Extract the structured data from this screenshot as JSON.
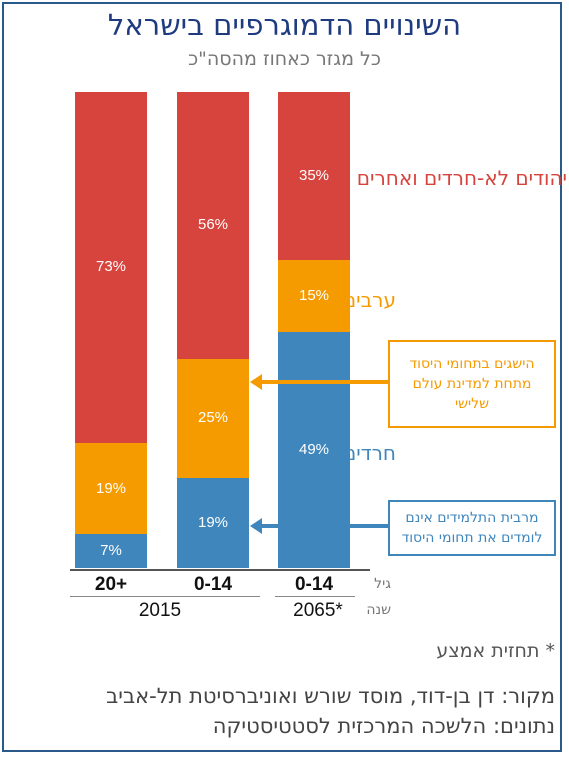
{
  "title": "השינויים הדמוגרפיים בישראל",
  "subtitle": "כל מגזר כאחוז מהסה\"כ",
  "chart_data": {
    "type": "bar",
    "stacked": true,
    "normalized": true,
    "categories": [
      "20+",
      "0-14",
      "0-14"
    ],
    "years": [
      "2015",
      "2065*"
    ],
    "axis_row_labels": {
      "age": "גיל",
      "year": "שנה"
    },
    "series": [
      {
        "name": "חרדים",
        "color": "#3f86bd",
        "values": [
          7,
          19,
          49
        ]
      },
      {
        "name": "ערבים",
        "color": "#f59b00",
        "values": [
          19,
          25,
          15
        ]
      },
      {
        "name": "יהודים לא-חרדים ואחרים",
        "color": "#d7443e",
        "values": [
          73,
          56,
          35
        ]
      }
    ],
    "annotations": [
      {
        "text": "הישגים בתחומי היסוד מתחת למדינת עולם שלישי",
        "color": "#f59b00"
      },
      {
        "text": "מרבית התלמידים אינם לומדים את תחומי היסוד",
        "color": "#3f86bd"
      }
    ]
  },
  "footnote": "* תחזית אמצע",
  "source": "מקור: דן בן-דוד, מוסד שורש ואוניברסיטת תל-אביב",
  "data_source": "נתונים: הלשכה המרכזית לסטטיסטיקה"
}
